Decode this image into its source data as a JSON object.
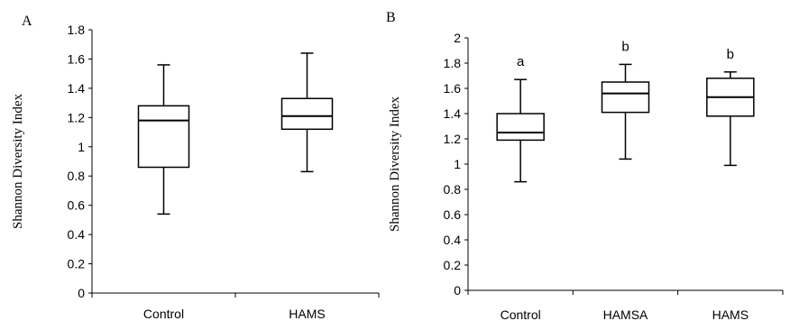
{
  "chart_data": [
    {
      "panel_label": "A",
      "type": "box",
      "ylabel": "Shannon Diversity Index",
      "ylim": [
        0,
        1.8
      ],
      "yticks": [
        "0",
        "0.2",
        "0.4",
        "0.6",
        "0.8",
        "1",
        "1.2",
        "1.4",
        "1.6",
        "1.8"
      ],
      "categories": [
        "Control",
        "HAMS"
      ],
      "boxes": [
        {
          "category": "Control",
          "min": 0.54,
          "q1": 0.86,
          "median": 1.18,
          "q3": 1.28,
          "max": 1.56,
          "sig": ""
        },
        {
          "category": "HAMS",
          "min": 0.83,
          "q1": 1.12,
          "median": 1.21,
          "q3": 1.33,
          "max": 1.64,
          "sig": ""
        }
      ]
    },
    {
      "panel_label": "B",
      "type": "box",
      "ylabel": "Shannon Diversity Index",
      "ylim": [
        0,
        2
      ],
      "yticks": [
        "0",
        "0.2",
        "0.4",
        "0.6",
        "0.8",
        "1",
        "1.2",
        "1.4",
        "1.6",
        "1.8",
        "2"
      ],
      "categories": [
        "Control",
        "HAMSA",
        "HAMS"
      ],
      "boxes": [
        {
          "category": "Control",
          "min": 0.86,
          "q1": 1.19,
          "median": 1.25,
          "q3": 1.4,
          "max": 1.67,
          "sig": "a"
        },
        {
          "category": "HAMSA",
          "min": 1.04,
          "q1": 1.41,
          "median": 1.56,
          "q3": 1.65,
          "max": 1.79,
          "sig": "b"
        },
        {
          "category": "HAMS",
          "min": 0.99,
          "q1": 1.38,
          "median": 1.53,
          "q3": 1.68,
          "max": 1.73,
          "sig": "b"
        }
      ]
    }
  ]
}
